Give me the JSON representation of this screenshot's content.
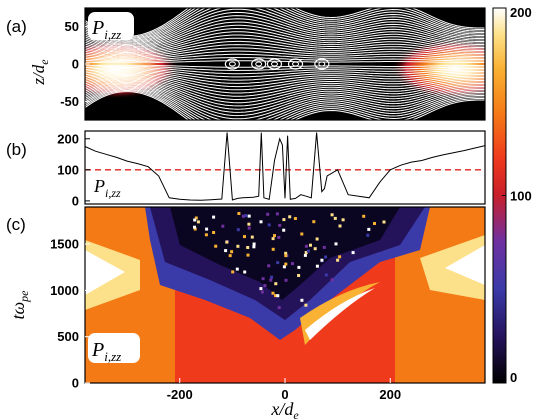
{
  "panel_labels": [
    "(a)",
    "(b)",
    "(c)"
  ],
  "quantity_label": "P",
  "quantity_subscript": "i,zz",
  "colorbar": {
    "ticks": [
      "200",
      "100",
      "0"
    ],
    "tick_values": [
      200,
      100,
      0
    ],
    "colormap": [
      "#000000",
      "#24125a",
      "#3a3aa8",
      "#7030a0",
      "#c81e2a",
      "#ef3a1c",
      "#f47a16",
      "#f9b233",
      "#fde18a",
      "#ffffff"
    ]
  },
  "axes": {
    "a": {
      "ylabel_main": "z/d",
      "ylabel_sub": "e",
      "yticks": [
        "50",
        "0",
        "-50"
      ],
      "ytick_values": [
        50,
        0,
        -50
      ],
      "ylim": [
        -75,
        75
      ]
    },
    "b": {
      "yticks": [
        "200",
        "100",
        "0"
      ],
      "ytick_values": [
        200,
        100,
        0
      ],
      "ylim": [
        -10,
        225
      ],
      "reference_line": 100
    },
    "c": {
      "ylabel_main": "tω",
      "ylabel_sub": "pe",
      "yticks": [
        "1500",
        "1000",
        "500",
        "0"
      ],
      "ytick_values": [
        1500,
        1000,
        500,
        0
      ],
      "ylim": [
        0,
        1900
      ]
    },
    "x": {
      "xlabel_main": "x/d",
      "xlabel_sub": "e",
      "xticks": [
        "-200",
        "0",
        "200"
      ],
      "xtick_values": [
        -200,
        0,
        200
      ],
      "xlim": [
        -380,
        380
      ]
    }
  },
  "chart_data": [
    {
      "type": "heatmap",
      "panel": "a",
      "description_hidden": false,
      "x_range": [
        -380,
        380
      ],
      "y_range": [
        -75,
        75
      ],
      "hotspots": [
        {
          "x": -310,
          "z": 0,
          "value": 200
        },
        {
          "x": 310,
          "z": 0,
          "value": 200
        }
      ],
      "islands_x": [
        -100,
        -50,
        -20,
        20,
        70
      ]
    },
    {
      "type": "line",
      "panel": "b",
      "x": [
        -380,
        -360,
        -340,
        -320,
        -300,
        -280,
        -260,
        -240,
        -220,
        -200,
        -180,
        -160,
        -140,
        -120,
        -110,
        -100,
        -90,
        -80,
        -60,
        -50,
        -45,
        -40,
        -30,
        -20,
        -10,
        -5,
        0,
        5,
        10,
        20,
        30,
        40,
        50,
        60,
        70,
        75,
        80,
        100,
        120,
        140,
        160,
        180,
        200,
        220,
        240,
        260,
        280,
        300,
        320,
        340,
        360,
        380
      ],
      "y": [
        175,
        160,
        150,
        140,
        128,
        120,
        110,
        80,
        10,
        5,
        3,
        2,
        4,
        6,
        220,
        3,
        8,
        10,
        12,
        15,
        220,
        10,
        5,
        130,
        200,
        180,
        8,
        210,
        5,
        8,
        20,
        15,
        10,
        220,
        30,
        40,
        80,
        100,
        20,
        15,
        10,
        60,
        100,
        115,
        125,
        130,
        140,
        148,
        155,
        162,
        170,
        178
      ]
    },
    {
      "type": "heatmap",
      "panel": "c",
      "x_range": [
        -380,
        380
      ],
      "y_range": [
        0,
        1900
      ],
      "value_range": [
        0,
        200
      ]
    }
  ]
}
